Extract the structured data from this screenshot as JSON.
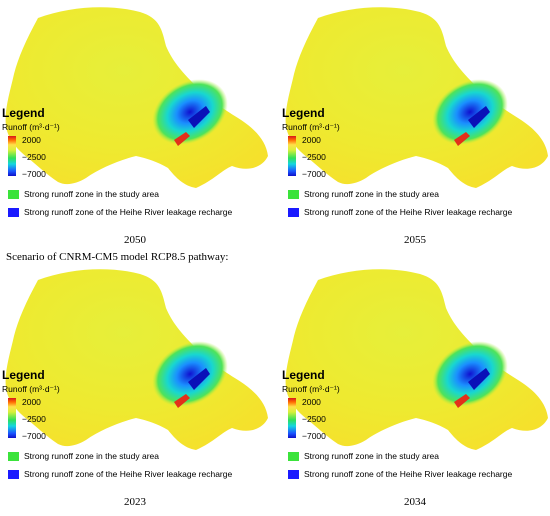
{
  "legend": {
    "title": "Legend",
    "subtitle": "Runoff (m³·d⁻¹)",
    "ticks": [
      "2000",
      "−2500",
      "−7000"
    ],
    "zone_study_area": "Strong runoff zone in the study area",
    "zone_heihe": "Strong runoff zone of the Heihe River leakage recharge"
  },
  "colors": {
    "background_yellow": "#f2ea2e",
    "zone_green": "#3be33b",
    "zone_blue": "#1a1aff",
    "ramp_top": "#d7191c",
    "ramp_bottom": "#1010c8"
  },
  "scenario_caption": "Scenario of CNRM-CM5 model RCP8.5 pathway:",
  "panels": [
    {
      "year": "2050"
    },
    {
      "year": "2055"
    },
    {
      "year": "2023"
    },
    {
      "year": "2034"
    }
  ]
}
